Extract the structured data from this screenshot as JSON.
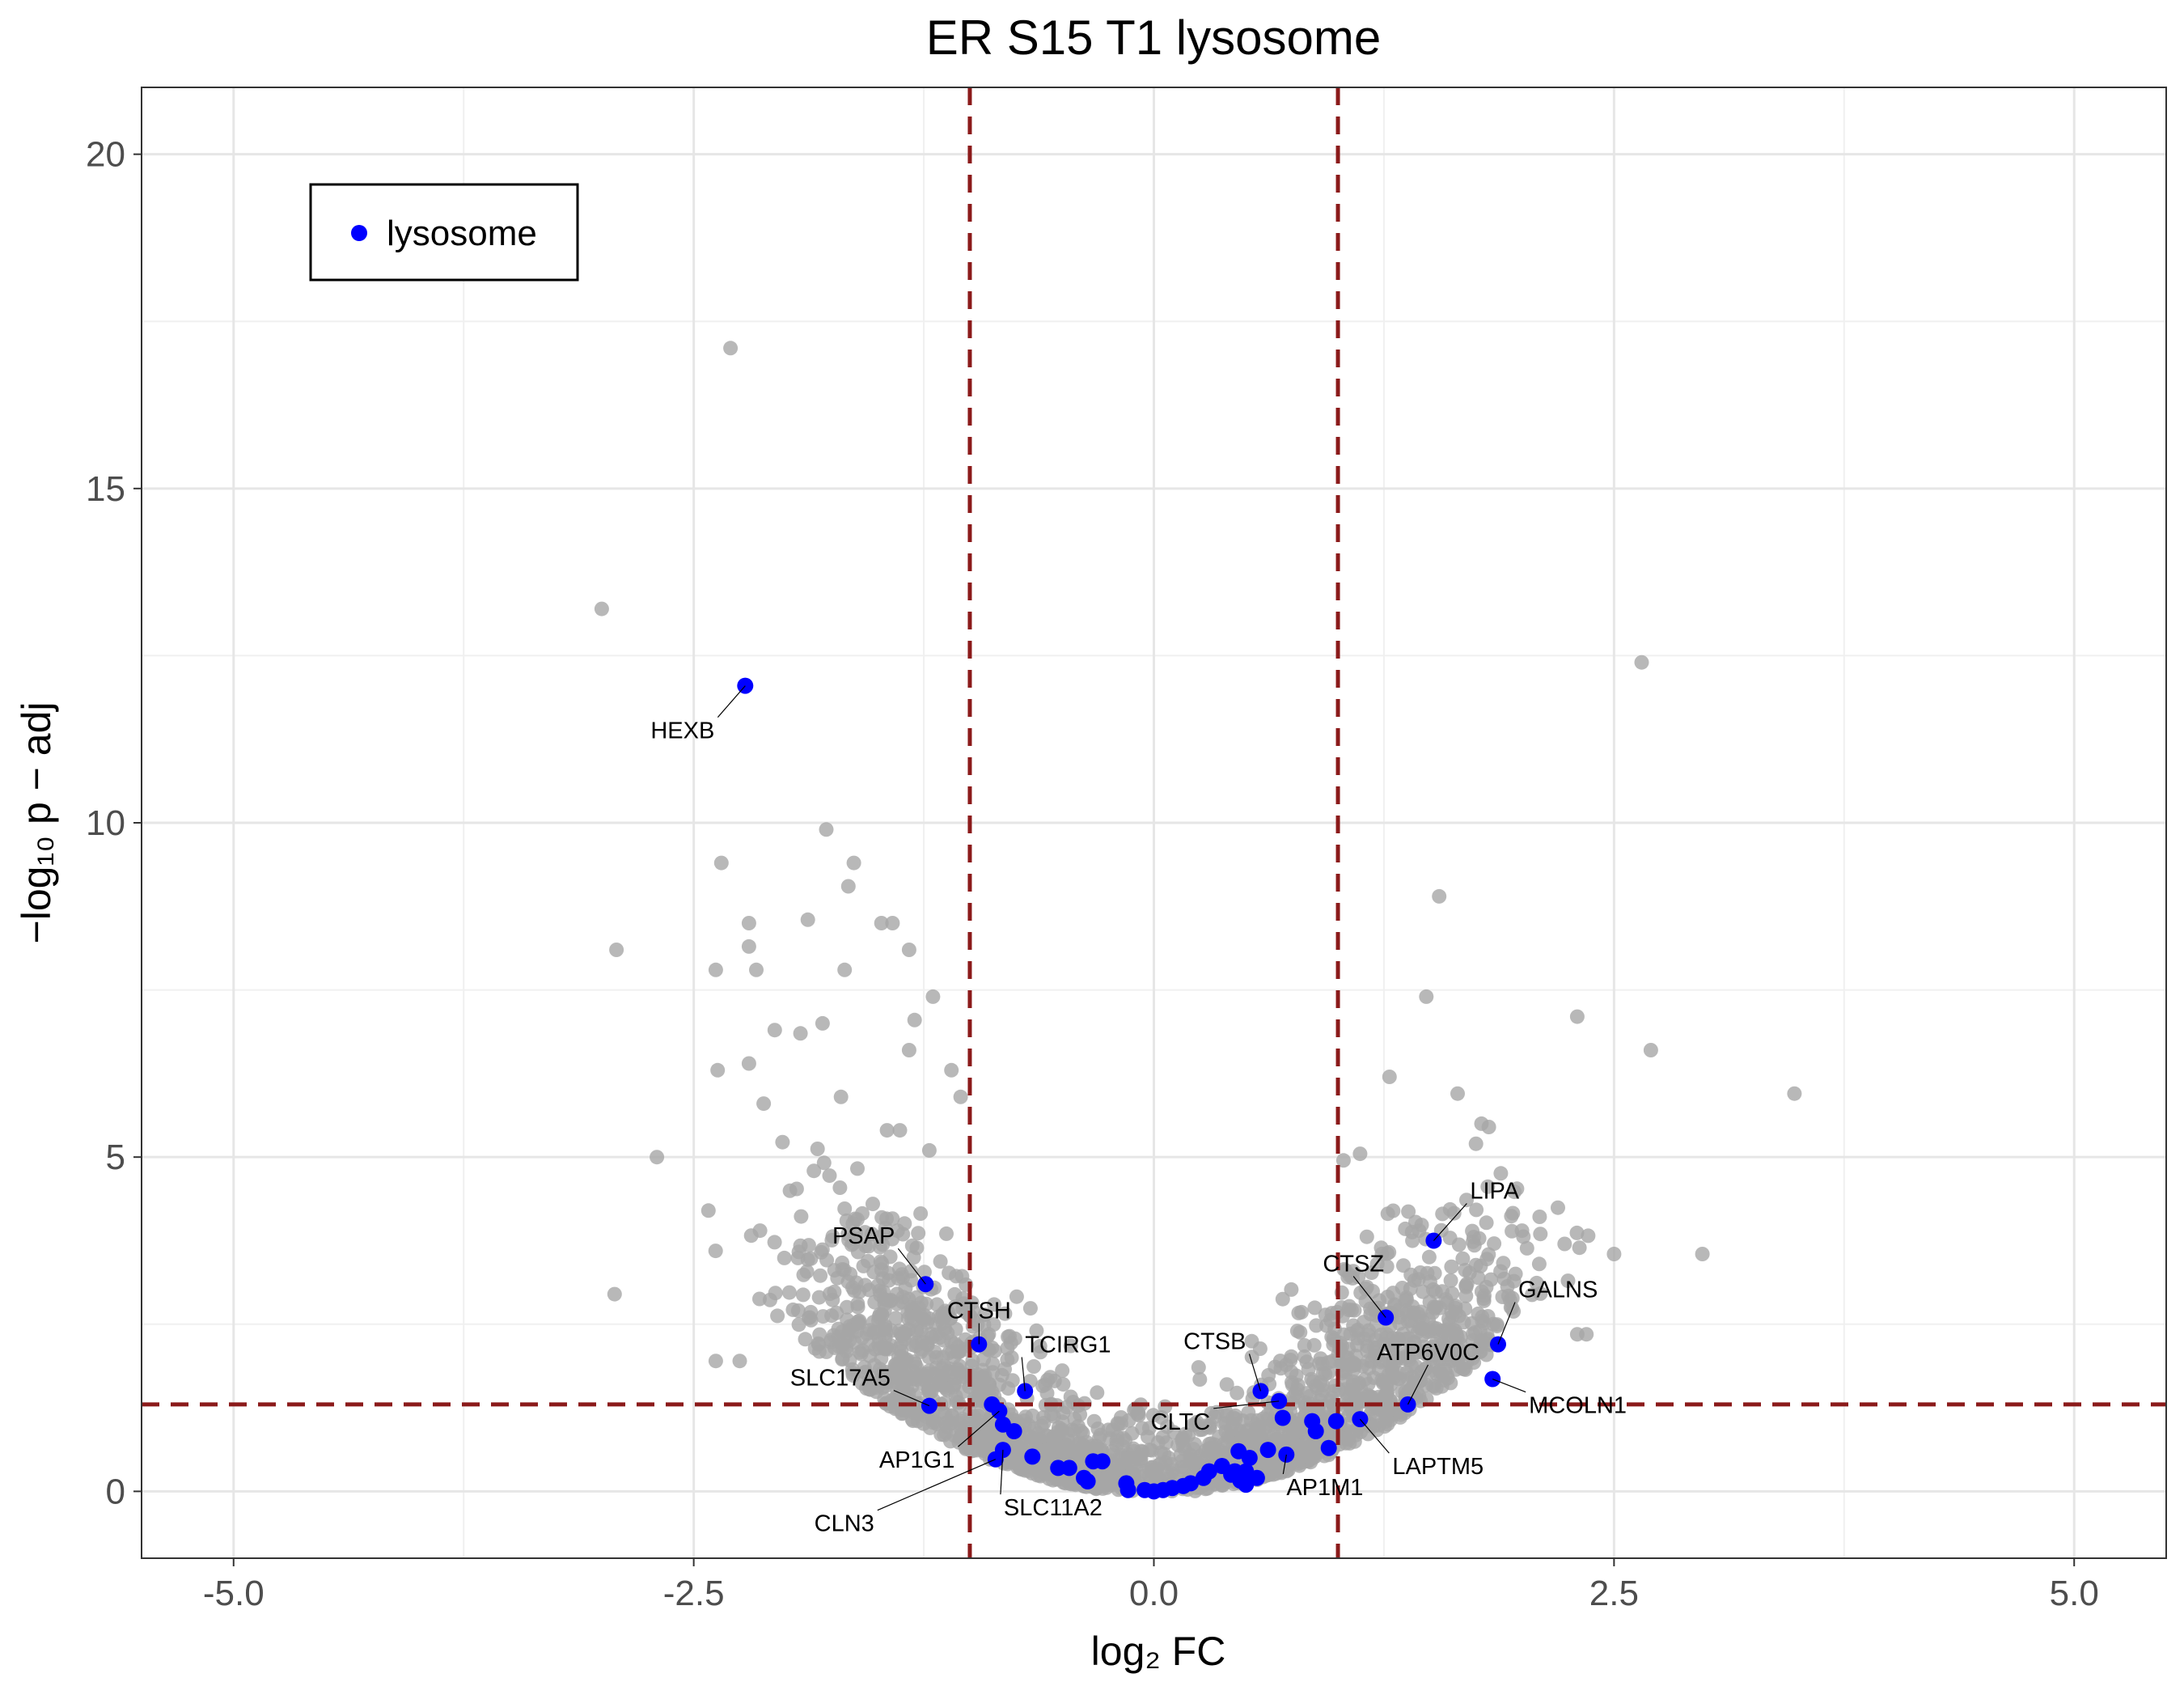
{
  "chart_data": {
    "type": "scatter",
    "title": "ER S15 T1 lysosome",
    "xlabel": "log₂ FC",
    "ylabel": "−log₁₀ p − adj",
    "xlim": [
      -5.5,
      5.5
    ],
    "ylim": [
      -1,
      21
    ],
    "x_ticks": [
      -5.0,
      -2.5,
      0.0,
      2.5,
      5.0
    ],
    "x_tick_labels": [
      "-5.0",
      "-2.5",
      "0.0",
      "2.5",
      "5.0"
    ],
    "y_ticks": [
      0,
      5,
      10,
      15,
      20
    ],
    "y_tick_labels": [
      "0",
      "5",
      "10",
      "15",
      "20"
    ],
    "grid": true,
    "legend": {
      "position": "top-left",
      "entries": [
        "lysosome"
      ]
    },
    "colors": {
      "background_points": "#a6a6a6",
      "highlight": "#0000ff",
      "threshold_lines": "#8b1a1a"
    },
    "thresholds": {
      "fc_lines": [
        -1,
        1
      ],
      "padj_line": 1.3
    },
    "background_outliers": [
      {
        "x": -2.3,
        "y": 17.1
      },
      {
        "x": -3.0,
        "y": 13.2
      },
      {
        "x": 2.65,
        "y": 12.4
      },
      {
        "x": -1.78,
        "y": 9.9
      },
      {
        "x": -1.63,
        "y": 9.4
      },
      {
        "x": -2.35,
        "y": 9.4
      },
      {
        "x": -1.66,
        "y": 9.05
      },
      {
        "x": -2.2,
        "y": 8.5
      },
      {
        "x": -1.48,
        "y": 8.5
      },
      {
        "x": -1.42,
        "y": 8.5
      },
      {
        "x": -1.88,
        "y": 8.55
      },
      {
        "x": -2.92,
        "y": 8.1
      },
      {
        "x": -2.2,
        "y": 8.15
      },
      {
        "x": -1.33,
        "y": 8.1
      },
      {
        "x": -2.38,
        "y": 7.8
      },
      {
        "x": -2.16,
        "y": 7.8
      },
      {
        "x": -1.68,
        "y": 7.8
      },
      {
        "x": 1.55,
        "y": 8.9
      },
      {
        "x": -1.2,
        "y": 7.4
      },
      {
        "x": 1.48,
        "y": 7.4
      },
      {
        "x": 2.3,
        "y": 7.1
      },
      {
        "x": 2.7,
        "y": 6.6
      },
      {
        "x": 3.48,
        "y": 5.95
      },
      {
        "x": 1.28,
        "y": 6.2
      },
      {
        "x": 1.65,
        "y": 5.95
      },
      {
        "x": -1.8,
        "y": 7.0
      },
      {
        "x": -1.92,
        "y": 6.85
      },
      {
        "x": -2.06,
        "y": 6.9
      },
      {
        "x": -1.3,
        "y": 7.05
      },
      {
        "x": -1.33,
        "y": 6.6
      },
      {
        "x": -2.37,
        "y": 6.3
      },
      {
        "x": -2.2,
        "y": 6.4
      },
      {
        "x": -2.7,
        "y": 5.0
      },
      {
        "x": -2.42,
        "y": 4.2
      },
      {
        "x": -2.14,
        "y": 3.9
      },
      {
        "x": -2.93,
        "y": 2.95
      },
      {
        "x": -1.05,
        "y": 5.9
      },
      {
        "x": -1.1,
        "y": 6.3
      },
      {
        "x": 1.78,
        "y": 5.5
      },
      {
        "x": 1.82,
        "y": 5.45
      },
      {
        "x": 1.75,
        "y": 5.2
      },
      {
        "x": 2.25,
        "y": 3.15
      },
      {
        "x": 2.5,
        "y": 3.55
      },
      {
        "x": 2.98,
        "y": 3.55
      },
      {
        "x": 2.3,
        "y": 2.35
      },
      {
        "x": 2.35,
        "y": 2.35
      },
      {
        "x": -2.38,
        "y": 1.95
      },
      {
        "x": -2.25,
        "y": 1.95
      },
      {
        "x": 2.0,
        "y": 3.9
      },
      {
        "x": 2.1,
        "y": 3.85
      },
      {
        "x": 1.03,
        "y": 4.95
      },
      {
        "x": 1.12,
        "y": 5.05
      },
      {
        "x": -1.22,
        "y": 5.1
      },
      {
        "x": -2.12,
        "y": 5.8
      },
      {
        "x": -1.7,
        "y": 5.9
      },
      {
        "x": -1.38,
        "y": 5.4
      },
      {
        "x": -1.45,
        "y": 5.4
      },
      {
        "x": 0.25,
        "y": 0.3
      },
      {
        "x": -0.35,
        "y": 0.25
      },
      {
        "x": 0.45,
        "y": 0.6
      }
    ],
    "background_regions": [
      {
        "x_center": -1.15,
        "x_spread": 0.55,
        "y_max": 4.6,
        "count": 620
      },
      {
        "x_center": 1.15,
        "x_spread": 0.55,
        "y_max": 4.4,
        "count": 620
      },
      {
        "x_center": -0.45,
        "x_spread": 0.4,
        "y_max": 1.4,
        "count": 360
      },
      {
        "x_center": 0.45,
        "x_spread": 0.4,
        "y_max": 1.4,
        "count": 360
      },
      {
        "x_center": -1.65,
        "x_spread": 0.45,
        "y_max": 5.6,
        "count": 90
      },
      {
        "x_center": 1.65,
        "x_spread": 0.45,
        "y_max": 5.2,
        "count": 90
      }
    ],
    "highlighted": [
      {
        "x": -2.22,
        "y": 12.05,
        "label": "HEXB"
      },
      {
        "x": -1.24,
        "y": 3.1,
        "label": "PSAP"
      },
      {
        "x": -0.95,
        "y": 2.2,
        "label": "CTSH"
      },
      {
        "x": -0.7,
        "y": 1.5,
        "label": "TCIRG1"
      },
      {
        "x": -1.22,
        "y": 1.28,
        "label": "SLC17A5"
      },
      {
        "x": -0.84,
        "y": 1.2,
        "label": "AP1G1"
      },
      {
        "x": -0.86,
        "y": 0.48,
        "label": "CLN3"
      },
      {
        "x": -0.82,
        "y": 0.62,
        "label": "SLC11A2"
      },
      {
        "x": 0.58,
        "y": 1.5,
        "label": "CTSB"
      },
      {
        "x": 0.68,
        "y": 1.35,
        "label": "CLTC"
      },
      {
        "x": 0.72,
        "y": 0.55,
        "label": "AP1M1"
      },
      {
        "x": 1.26,
        "y": 2.6,
        "label": "CTSZ"
      },
      {
        "x": 1.52,
        "y": 3.75,
        "label": "LIPA"
      },
      {
        "x": 1.87,
        "y": 2.2,
        "label": "GALNS"
      },
      {
        "x": 1.38,
        "y": 1.3,
        "label": "ATP6V0C"
      },
      {
        "x": 1.84,
        "y": 1.68,
        "label": "MCOLN1"
      },
      {
        "x": 1.12,
        "y": 1.08,
        "label": "LAPTM5"
      },
      {
        "x": -0.88,
        "y": 1.3
      },
      {
        "x": -0.82,
        "y": 1.0
      },
      {
        "x": -0.76,
        "y": 0.9
      },
      {
        "x": -0.66,
        "y": 0.52
      },
      {
        "x": -0.52,
        "y": 0.35
      },
      {
        "x": -0.46,
        "y": 0.35
      },
      {
        "x": -0.38,
        "y": 0.2
      },
      {
        "x": -0.33,
        "y": 0.45
      },
      {
        "x": -0.28,
        "y": 0.45
      },
      {
        "x": -0.36,
        "y": 0.15
      },
      {
        "x": -0.15,
        "y": 0.12
      },
      {
        "x": -0.14,
        "y": 0.02
      },
      {
        "x": -0.05,
        "y": 0.02
      },
      {
        "x": 0.0,
        "y": 0.0
      },
      {
        "x": 0.05,
        "y": 0.02
      },
      {
        "x": 0.1,
        "y": 0.05
      },
      {
        "x": 0.16,
        "y": 0.08
      },
      {
        "x": 0.2,
        "y": 0.12
      },
      {
        "x": 0.27,
        "y": 0.2
      },
      {
        "x": 0.3,
        "y": 0.3
      },
      {
        "x": 0.37,
        "y": 0.38
      },
      {
        "x": 0.42,
        "y": 0.25
      },
      {
        "x": 0.46,
        "y": 0.6
      },
      {
        "x": 0.52,
        "y": 0.5
      },
      {
        "x": 0.5,
        "y": 0.3
      },
      {
        "x": 0.5,
        "y": 0.1
      },
      {
        "x": 0.56,
        "y": 0.2
      },
      {
        "x": 0.62,
        "y": 0.62
      },
      {
        "x": 0.7,
        "y": 1.1
      },
      {
        "x": 0.86,
        "y": 1.05
      },
      {
        "x": 0.88,
        "y": 0.9
      },
      {
        "x": 0.95,
        "y": 0.65
      },
      {
        "x": 0.99,
        "y": 1.05
      },
      {
        "x": 0.44,
        "y": 0.3
      },
      {
        "x": 0.47,
        "y": 0.16
      }
    ]
  }
}
